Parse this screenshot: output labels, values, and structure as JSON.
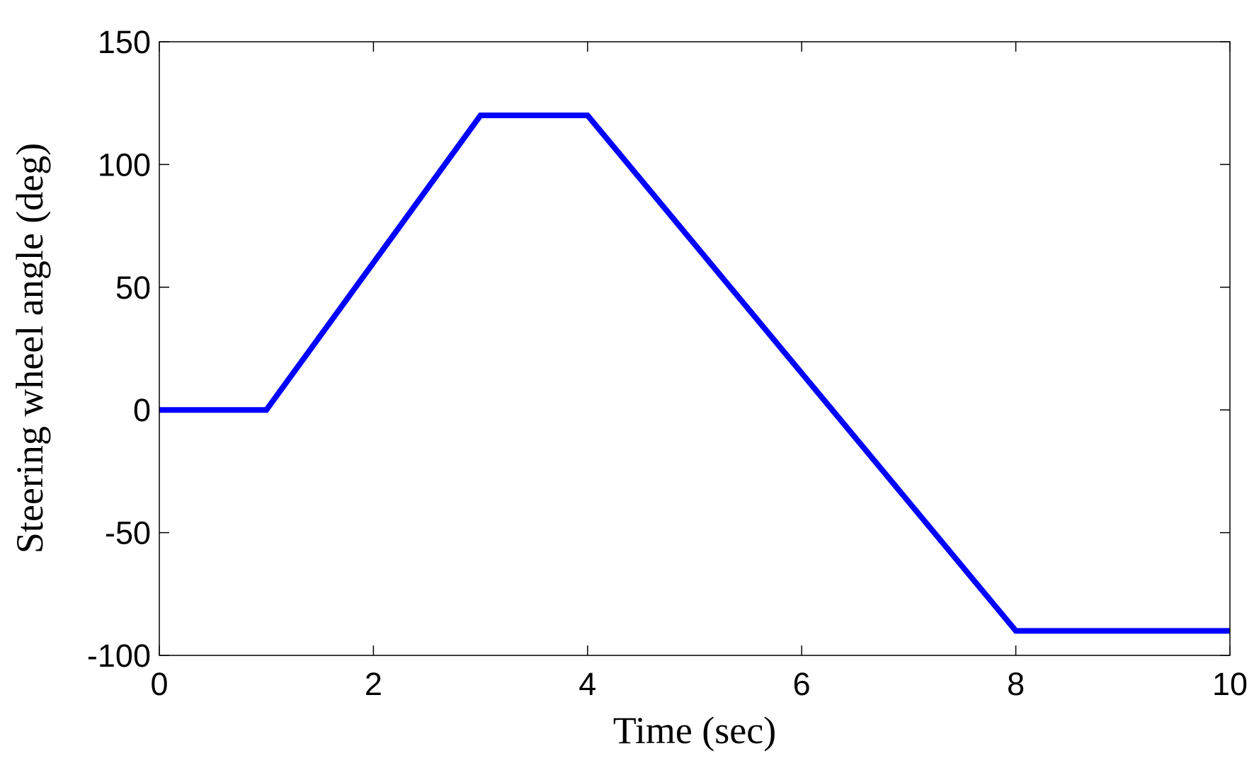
{
  "chart_data": {
    "type": "line",
    "xlabel": "Time (sec)",
    "ylabel": "Steering wheel angle (deg)",
    "x": [
      0,
      1,
      3,
      4,
      8,
      10
    ],
    "series": [
      {
        "color": "#0000ff",
        "values": [
          0,
          0,
          120,
          120,
          -90,
          -90
        ]
      }
    ],
    "xlim": [
      0,
      10
    ],
    "xticks": [
      0,
      2,
      4,
      6,
      8,
      10
    ],
    "ylim": [
      -100,
      150
    ],
    "yticks": [
      -100,
      -50,
      0,
      50,
      100,
      150
    ],
    "grid": false
  }
}
